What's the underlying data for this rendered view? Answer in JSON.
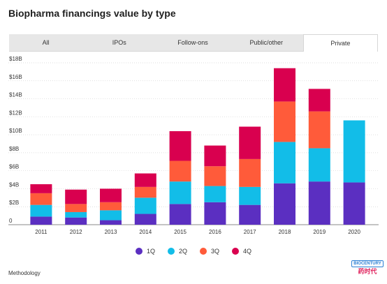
{
  "title": "Biopharma financings value by type",
  "tabs": [
    {
      "label": "All",
      "active": false
    },
    {
      "label": "IPOs",
      "active": false
    },
    {
      "label": "Follow-ons",
      "active": false
    },
    {
      "label": "Public/other",
      "active": false
    },
    {
      "label": "Private",
      "active": true
    }
  ],
  "legend": [
    {
      "label": "1Q",
      "color": "#5b2fc1"
    },
    {
      "label": "2Q",
      "color": "#12bde8"
    },
    {
      "label": "3Q",
      "color": "#ff5b3a"
    },
    {
      "label": "4Q",
      "color": "#d9004f"
    }
  ],
  "footer": {
    "methodology": "Methodology"
  },
  "logo": {
    "top": "BIOCENTURY",
    "bottom": "药时代"
  },
  "chart_data": {
    "type": "bar",
    "stacked": true,
    "title": "",
    "xlabel": "",
    "ylabel": "",
    "ylim": [
      0,
      18
    ],
    "yticks": [
      0,
      2,
      4,
      6,
      8,
      10,
      12,
      14,
      16,
      18
    ],
    "ytick_labels": [
      "0",
      "$2B",
      "$4B",
      "$6B",
      "$8B",
      "$10B",
      "$12B",
      "$14B",
      "$16B",
      "$18B"
    ],
    "grid": true,
    "categories": [
      "2011",
      "2012",
      "2013",
      "2014",
      "2015",
      "2016",
      "2017",
      "2018",
      "2019",
      "2020"
    ],
    "series": [
      {
        "name": "1Q",
        "color": "#5b2fc1",
        "values": [
          0.9,
          0.8,
          0.5,
          1.2,
          2.3,
          2.5,
          2.2,
          4.6,
          4.8,
          4.7
        ]
      },
      {
        "name": "2Q",
        "color": "#12bde8",
        "values": [
          1.3,
          0.6,
          1.1,
          1.8,
          2.5,
          1.8,
          2.0,
          4.6,
          3.7,
          6.9
        ]
      },
      {
        "name": "3Q",
        "color": "#ff5b3a",
        "values": [
          1.3,
          0.9,
          0.9,
          1.2,
          2.3,
          2.2,
          3.1,
          4.5,
          4.1,
          0
        ]
      },
      {
        "name": "4Q",
        "color": "#d9004f",
        "values": [
          1.0,
          1.6,
          1.5,
          1.5,
          3.3,
          2.3,
          3.6,
          3.7,
          2.5,
          0
        ]
      }
    ]
  }
}
